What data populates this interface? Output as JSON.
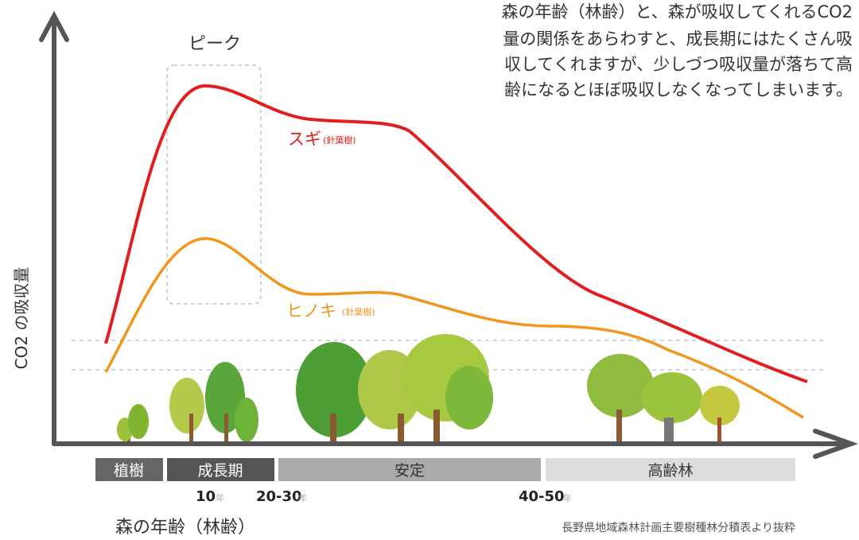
{
  "description": {
    "lines": [
      "森の年齢（林齢）と、森が吸収してくれるCO2",
      "量の関係をあらわすと、成長期にはたくさん吸",
      "収してくれますが、少しづつ吸収量が落ちて高",
      "齢になるとほぼ吸収しなくなってしまいます。"
    ]
  },
  "peak_label": "ピーク",
  "curves": [
    {
      "name": "スギ",
      "note": "(針葉樹)"
    },
    {
      "name": "ヒノキ",
      "note": "(針葉樹)"
    }
  ],
  "y_axis_label": "CO2 の吸収量",
  "stages": [
    "植樹",
    "成長期",
    "安定",
    "高齢林"
  ],
  "ages": [
    {
      "number": "10",
      "unit": "年"
    },
    {
      "number": "20-30",
      "unit": "年"
    },
    {
      "number": "40-50",
      "unit": "年"
    }
  ],
  "x_axis_label": "森の年齢（林齢）",
  "source": "長野県地域森林計画主要樹種林分積表より抜粋"
}
